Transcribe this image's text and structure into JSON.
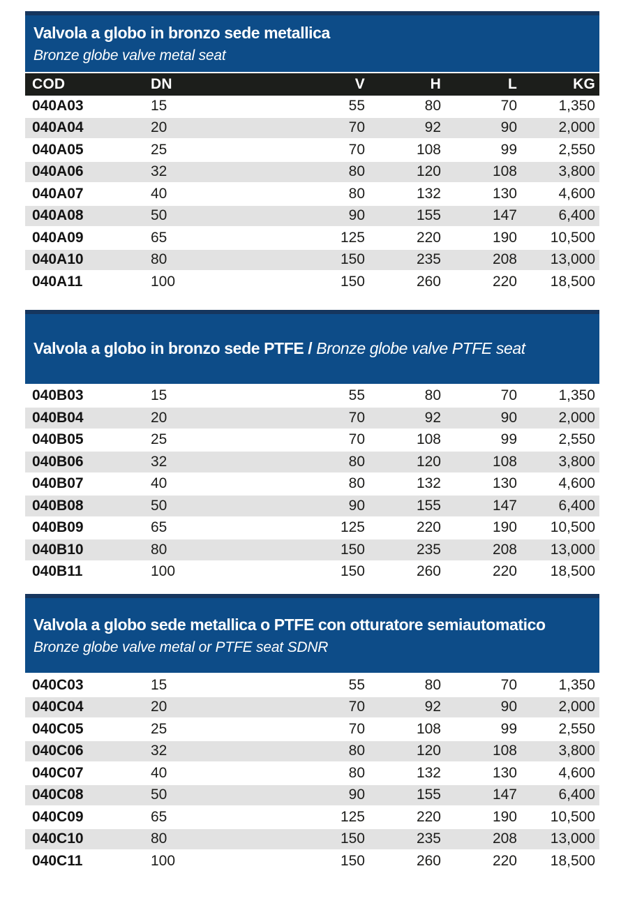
{
  "colors": {
    "panel_blue": "#0d4c88",
    "panel_top_edge": "#16365e",
    "column_header_bg": "#1c1e1b",
    "row_alt_bg": "#e2e2e2",
    "text_dark": "#1d1d1b",
    "text_white": "#ffffff"
  },
  "table_columns": [
    "COD",
    "DN",
    "V",
    "H",
    "L",
    "KG"
  ],
  "sections": [
    {
      "id": "bronze-globe-metal-seat",
      "title_italian": "Valvola a globo in bronzo sede metallica",
      "title_english": "Bronze globe valve metal seat",
      "rows": [
        [
          "040A03",
          "15",
          "55",
          "80",
          "70",
          "1,350"
        ],
        [
          "040A04",
          "20",
          "70",
          "92",
          "90",
          "2,000"
        ],
        [
          "040A05",
          "25",
          "70",
          "108",
          "99",
          "2,550"
        ],
        [
          "040A06",
          "32",
          "80",
          "120",
          "108",
          "3,800"
        ],
        [
          "040A07",
          "40",
          "80",
          "132",
          "130",
          "4,600"
        ],
        [
          "040A08",
          "50",
          "90",
          "155",
          "147",
          "6,400"
        ],
        [
          "040A09",
          "65",
          "125",
          "220",
          "190",
          "10,500"
        ],
        [
          "040A10",
          "80",
          "150",
          "235",
          "208",
          "13,000"
        ],
        [
          "040A11",
          "100",
          "150",
          "260",
          "220",
          "18,500"
        ]
      ]
    },
    {
      "id": "bronze-globe-ptfe-seat",
      "title_italian": "Valvola a globo in bronzo sede PTFE /",
      "title_english": "Bronze globe valve PTFE seat",
      "rows": [
        [
          "040B03",
          "15",
          "55",
          "80",
          "70",
          "1,350"
        ],
        [
          "040B04",
          "20",
          "70",
          "92",
          "90",
          "2,000"
        ],
        [
          "040B05",
          "25",
          "70",
          "108",
          "99",
          "2,550"
        ],
        [
          "040B06",
          "32",
          "80",
          "120",
          "108",
          "3,800"
        ],
        [
          "040B07",
          "40",
          "80",
          "132",
          "130",
          "4,600"
        ],
        [
          "040B08",
          "50",
          "90",
          "155",
          "147",
          "6,400"
        ],
        [
          "040B09",
          "65",
          "125",
          "220",
          "190",
          "10,500"
        ],
        [
          "040B10",
          "80",
          "150",
          "235",
          "208",
          "13,000"
        ],
        [
          "040B11",
          "100",
          "150",
          "260",
          "220",
          "18,500"
        ]
      ]
    },
    {
      "id": "globe-sdnr",
      "title_italian": "Valvola a globo sede metallica o PTFE con otturatore semiautomatico",
      "title_english": "Bronze globe valve metal or PTFE seat SDNR",
      "rows": [
        [
          "040C03",
          "15",
          "55",
          "80",
          "70",
          "1,350"
        ],
        [
          "040C04",
          "20",
          "70",
          "92",
          "90",
          "2,000"
        ],
        [
          "040C05",
          "25",
          "70",
          "108",
          "99",
          "2,550"
        ],
        [
          "040C06",
          "32",
          "80",
          "120",
          "108",
          "3,800"
        ],
        [
          "040C07",
          "40",
          "80",
          "132",
          "130",
          "4,600"
        ],
        [
          "040C08",
          "50",
          "90",
          "155",
          "147",
          "6,400"
        ],
        [
          "040C09",
          "65",
          "125",
          "220",
          "190",
          "10,500"
        ],
        [
          "040C10",
          "80",
          "150",
          "235",
          "208",
          "13,000"
        ],
        [
          "040C11",
          "100",
          "150",
          "260",
          "220",
          "18,500"
        ]
      ]
    }
  ]
}
